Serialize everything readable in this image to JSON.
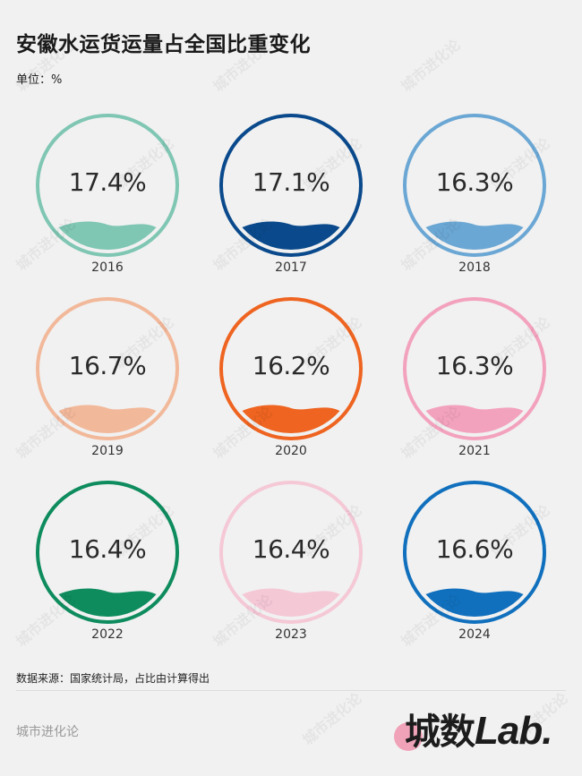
{
  "header": {
    "title": "安徽水运货运量占全国比重变化",
    "unit": "单位：%"
  },
  "chart_data": {
    "type": "table",
    "title": "安徽水运货运量占全国比重变化",
    "unit": "%",
    "categories": [
      "2016",
      "2017",
      "2018",
      "2019",
      "2020",
      "2021",
      "2022",
      "2023",
      "2024"
    ],
    "values": [
      17.4,
      17.1,
      16.3,
      16.7,
      16.2,
      16.3,
      16.4,
      16.4,
      16.6
    ],
    "layout": "3x3 grid of circular liquid-fill gauges",
    "colors": [
      "#7fc6b3",
      "#0a4a8c",
      "#6ba7d4",
      "#f2b89a",
      "#ee6420",
      "#f3a2be",
      "#0e8c5e",
      "#f5c8d6",
      "#1170bd"
    ]
  },
  "items": [
    {
      "year": "2016",
      "label": "17.4%",
      "color": "#7fc6b3"
    },
    {
      "year": "2017",
      "label": "17.1%",
      "color": "#0a4a8c"
    },
    {
      "year": "2018",
      "label": "16.3%",
      "color": "#6ba7d4"
    },
    {
      "year": "2019",
      "label": "16.7%",
      "color": "#f2b89a"
    },
    {
      "year": "2020",
      "label": "16.2%",
      "color": "#ee6420"
    },
    {
      "year": "2021",
      "label": "16.3%",
      "color": "#f3a2be"
    },
    {
      "year": "2022",
      "label": "16.4%",
      "color": "#0e8c5e"
    },
    {
      "year": "2023",
      "label": "16.4%",
      "color": "#f5c8d6"
    },
    {
      "year": "2024",
      "label": "16.6%",
      "color": "#1170bd"
    }
  ],
  "footer": {
    "source": "数据来源：国家统计局，占比由计算得出",
    "brand": "城市进化论",
    "logo_cn": "城数",
    "logo_en": "Lab.",
    "logo_dot_color": "#f0a2b8"
  },
  "watermark": "城市进化论"
}
